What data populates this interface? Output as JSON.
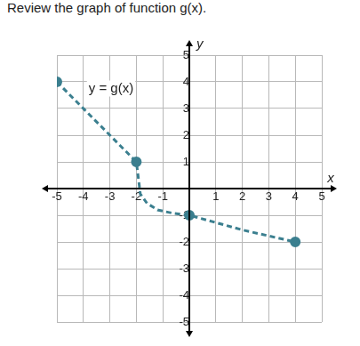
{
  "chart_data": {
    "type": "line",
    "title": "Review the graph of function g(x).",
    "x_label": "x",
    "y_label": "y",
    "annotation": "y = g(x)",
    "xlim": [
      -5,
      5
    ],
    "ylim": [
      -5,
      5
    ],
    "xticks": [
      -5,
      -4,
      -3,
      -2,
      -1,
      1,
      2,
      3,
      4,
      5
    ],
    "yticks": [
      -5,
      -4,
      -3,
      -2,
      -1,
      1,
      2,
      3,
      4,
      5
    ],
    "grid": true,
    "series": [
      {
        "x": [
          -5,
          -2,
          -1.85,
          -1.6,
          -1.2,
          -0.6,
          0,
          2,
          4
        ],
        "values": [
          4,
          1,
          -0.2,
          -0.55,
          -0.8,
          -0.93,
          -1,
          -1.55,
          -2
        ],
        "color": "#3b7f8f",
        "line_style": "dashed",
        "marker": "none"
      },
      {
        "x": [
          -5,
          -2,
          0,
          4
        ],
        "values": [
          4,
          1,
          -1,
          -2
        ],
        "color": "#3b7f8f",
        "line_style": "none",
        "marker": "circle"
      }
    ]
  }
}
